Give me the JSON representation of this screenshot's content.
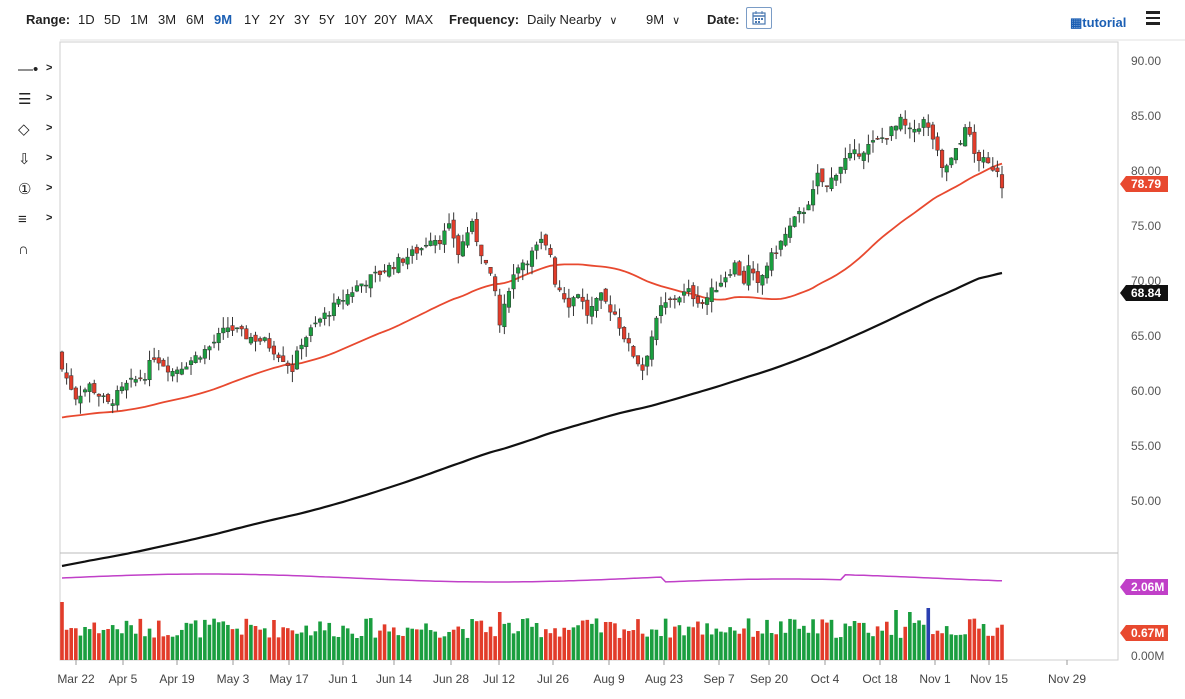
{
  "toolbar": {
    "range_label": "Range:",
    "ranges": [
      "1D",
      "5D",
      "1M",
      "3M",
      "6M",
      "9M",
      "1Y",
      "2Y",
      "3Y",
      "5Y",
      "10Y",
      "20Y",
      "MAX"
    ],
    "active_range": "9M",
    "frequency_label": "Frequency:",
    "frequency_value": "Daily Nearby",
    "period_value": "9M",
    "date_label": "Date:",
    "tutorial_label": "tutorial"
  },
  "tools": [
    "crosshair-tool",
    "fib-retracement-tool",
    "shape-tool",
    "arrow-tool",
    "numbered-marker-tool",
    "pattern-tool",
    "magnet-tool"
  ],
  "chart_data": {
    "type": "candlestick",
    "price_axis": {
      "ticks": [
        "90.00",
        "85.00",
        "80.00",
        "75.00",
        "70.00",
        "65.00",
        "60.00",
        "55.00",
        "50.00"
      ],
      "ylim": [
        45,
        91
      ]
    },
    "volume_axis": {
      "ticks": [
        "0.00M"
      ]
    },
    "x_tick_labels": [
      "Mar 22",
      "Apr 5",
      "Apr 19",
      "May 3",
      "May 17",
      "Jun 1",
      "Jun 14",
      "Jun 28",
      "Jul 12",
      "Jul 26",
      "Aug 9",
      "Aug 23",
      "Sep 7",
      "Sep 20",
      "Oct 4",
      "Oct 18",
      "Nov 1",
      "Nov 15",
      "Nov 29"
    ],
    "last_price": "78.79",
    "ma_short_value": "78.79",
    "ma_long_value": "68.84",
    "volume_ma_value": "2.06M",
    "last_volume": "0.67M",
    "colors": {
      "up": "#1a9e3f",
      "down": "#e23c2a",
      "ma_short": "#e8492f",
      "ma_long": "#111111",
      "volume_ma": "#c040c8",
      "volume_spike": "#2a3fb0"
    },
    "close_anchors": [
      [
        0,
        62.0
      ],
      [
        3,
        59.5
      ],
      [
        6,
        60.5
      ],
      [
        10,
        58.8
      ],
      [
        14,
        60.5
      ],
      [
        18,
        61.5
      ],
      [
        20,
        63.2
      ],
      [
        24,
        61.8
      ],
      [
        28,
        62.8
      ],
      [
        32,
        64.0
      ],
      [
        36,
        65.8
      ],
      [
        40,
        65.0
      ],
      [
        44,
        64.5
      ],
      [
        48,
        63.0
      ],
      [
        50,
        62.0
      ],
      [
        52,
        64.5
      ],
      [
        56,
        66.5
      ],
      [
        60,
        68.0
      ],
      [
        64,
        69.5
      ],
      [
        68,
        70.5
      ],
      [
        72,
        71.5
      ],
      [
        76,
        72.5
      ],
      [
        78,
        73.0
      ],
      [
        80,
        74.0
      ],
      [
        82,
        73.8
      ],
      [
        84,
        74.8
      ],
      [
        85,
        74.0
      ],
      [
        86,
        72.5
      ],
      [
        88,
        74.5
      ],
      [
        89,
        75.0
      ],
      [
        90,
        73.8
      ],
      [
        92,
        71.5
      ],
      [
        94,
        69.0
      ],
      [
        95,
        66.0
      ],
      [
        96,
        67.5
      ],
      [
        97,
        69.5
      ],
      [
        99,
        71.5
      ],
      [
        101,
        72.0
      ],
      [
        104,
        73.5
      ],
      [
        106,
        72.5
      ],
      [
        107,
        70.0
      ],
      [
        110,
        68.0
      ],
      [
        112,
        69.0
      ],
      [
        114,
        67.0
      ],
      [
        117,
        68.5
      ],
      [
        120,
        67.0
      ],
      [
        123,
        64.0
      ],
      [
        126,
        62.0
      ],
      [
        128,
        65.0
      ],
      [
        130,
        67.5
      ],
      [
        133,
        68.5
      ],
      [
        136,
        69.0
      ],
      [
        139,
        68.0
      ],
      [
        142,
        69.5
      ],
      [
        144,
        70.5
      ],
      [
        146,
        71.5
      ],
      [
        148,
        70.0
      ],
      [
        149,
        71.2
      ],
      [
        151,
        69.5
      ],
      [
        153,
        71.5
      ],
      [
        156,
        73.5
      ],
      [
        159,
        75.5
      ],
      [
        161,
        76.5
      ],
      [
        163,
        78.0
      ],
      [
        164,
        79.5
      ],
      [
        166,
        78.5
      ],
      [
        168,
        80.0
      ],
      [
        170,
        81.0
      ],
      [
        174,
        82.0
      ],
      [
        178,
        83.0
      ],
      [
        181,
        84.0
      ],
      [
        182,
        84.5
      ],
      [
        184,
        83.5
      ],
      [
        187,
        84.5
      ],
      [
        189,
        83.0
      ],
      [
        191,
        80.0
      ],
      [
        193,
        81.0
      ],
      [
        195,
        82.5
      ],
      [
        196,
        84.3
      ],
      [
        197,
        83.0
      ],
      [
        198,
        81.5
      ],
      [
        201,
        80.5
      ],
      [
        203,
        80.2
      ],
      [
        204,
        78.79
      ]
    ],
    "volume_description_free": true
  }
}
